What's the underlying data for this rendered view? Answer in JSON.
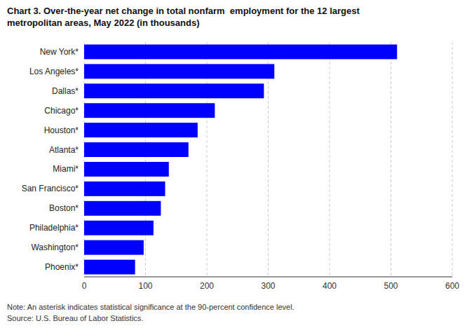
{
  "chart_data": {
    "type": "bar",
    "orientation": "horizontal",
    "title": "Chart 3. Over-the-year net change in total nonfarm  employment for the 12 largest\nmetropolitan areas, May 2022 (in thousands)",
    "annotations": [
      "Note: An asterisk indicates statistical significance at the 90-percent confidence level.",
      "Source: U.S. Bureau of Labor Statistics."
    ],
    "categories": [
      "New York*",
      "Los Angeles*",
      "Dallas*",
      "Chicago*",
      "Houston*",
      "Atlanta*",
      "Miami*",
      "San Francisco*",
      "Boston*",
      "Philadelphia*",
      "Washington*",
      "Phoenix*"
    ],
    "values": [
      510,
      310,
      293,
      213,
      185,
      170,
      138,
      132,
      125,
      113,
      97,
      83
    ],
    "color": "#0000ff",
    "xlim": [
      0,
      600
    ],
    "xticks": [
      0,
      100,
      200,
      300,
      400,
      500,
      600
    ],
    "grid": true
  }
}
